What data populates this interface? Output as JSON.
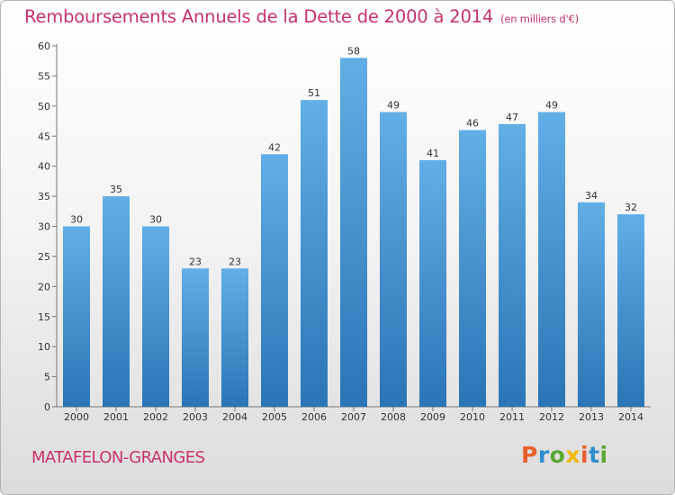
{
  "header": {
    "title": "Remboursements Annuels de la Dette de 2000 à 2014",
    "unit": "(en milliers d'€)"
  },
  "footer": {
    "commune": "MATAFELON-GRANGES",
    "logo": "Proxiti"
  },
  "colors": {
    "accent": "#c8326e",
    "bar_light": "#62aee6",
    "bar_dark": "#2a75b5",
    "logo_letters": [
      "#e8612c",
      "#2e8fce",
      "#5aa832",
      "#f2b900",
      "#e8612c",
      "#2e8fce",
      "#5aa832"
    ]
  },
  "chart_data": {
    "type": "bar",
    "title": "Remboursements Annuels de la Dette de 2000 à 2014",
    "xlabel": "",
    "ylabel": "",
    "categories": [
      "2000",
      "2001",
      "2002",
      "2003",
      "2004",
      "2005",
      "2006",
      "2007",
      "2008",
      "2009",
      "2010",
      "2011",
      "2012",
      "2013",
      "2014"
    ],
    "values": [
      30,
      35,
      30,
      23,
      23,
      42,
      51,
      58,
      49,
      41,
      46,
      47,
      49,
      34,
      32
    ],
    "ylim": [
      0,
      60
    ],
    "yticks": [
      0,
      5,
      10,
      15,
      20,
      25,
      30,
      35,
      40,
      45,
      50,
      55,
      60
    ],
    "grid": false,
    "data_labels": true
  }
}
